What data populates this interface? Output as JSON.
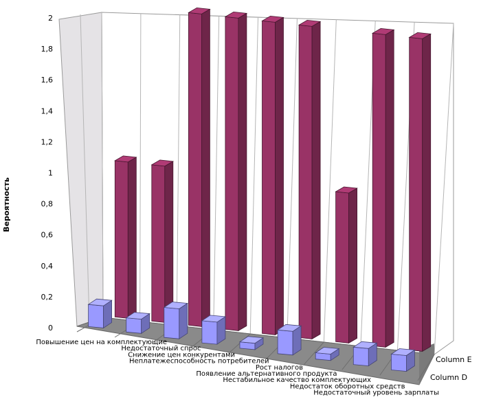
{
  "chart_data": {
    "type": "bar",
    "title": "",
    "xlabel": "",
    "ylabel": "Вероятность",
    "ylim": [
      0,
      2
    ],
    "y_ticks": [
      "0",
      "0,2",
      "0,4",
      "0,6",
      "0,8",
      "1",
      "1,2",
      "1,4",
      "1,6",
      "1,8",
      "2"
    ],
    "grid": true,
    "three_d": true,
    "legend_position": "bottom-right",
    "categories": [
      "Повышение цен на комплектующие",
      "Недостаточный спрос",
      "Снижение цен конкурентами",
      "Неплатежеспособность потребителей",
      "Рост налогов",
      "Появление альтернативного продукта",
      "Нестабильное качество комплектующих",
      "Недостаток оборотных средств",
      "Недостаточный уровень зарплаты"
    ],
    "series": [
      {
        "name": "Column D",
        "color": "#9999ff",
        "values": [
          0.28,
          0.18,
          0.38,
          0.28,
          0.08,
          0.3,
          0.08,
          0.22,
          0.2
        ]
      },
      {
        "name": "Column E",
        "color": "#993366",
        "values": [
          1.0,
          1.0,
          2.0,
          2.0,
          2.0,
          2.0,
          0.96,
          2.0,
          2.0
        ]
      }
    ]
  }
}
